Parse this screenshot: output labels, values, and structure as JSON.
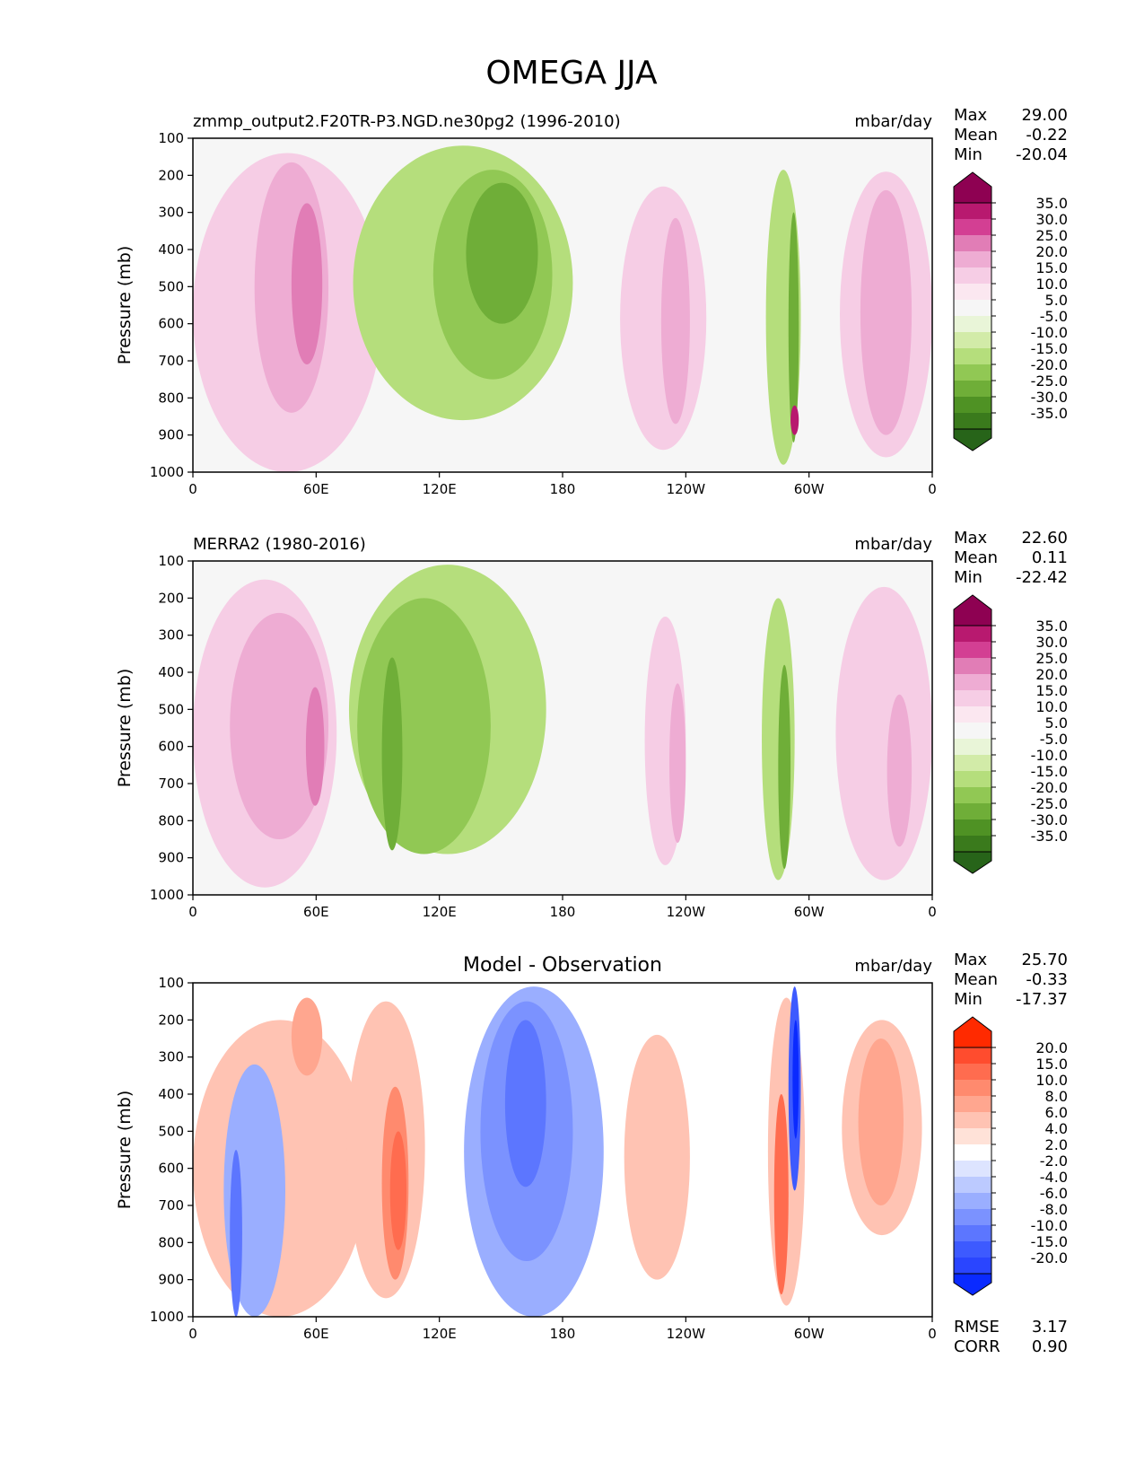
{
  "figure": {
    "title": "OMEGA JJA"
  },
  "chart_data": [
    {
      "type": "heatmap",
      "title": "",
      "left_title": "zmmp_output2.F20TR-P3.NGD.ne30pg2 (1996-2010)",
      "units": "mbar/day",
      "ylabel": "Pressure (mb)",
      "xlabel": "",
      "xticks": [
        "0",
        "60E",
        "120E",
        "180",
        "120W",
        "60W",
        "0"
      ],
      "yticks": [
        "100",
        "200",
        "300",
        "400",
        "500",
        "600",
        "700",
        "800",
        "900",
        "1000"
      ],
      "xlim": [
        0,
        360
      ],
      "ylim": [
        1000,
        100
      ],
      "stats": [
        {
          "label": "Max",
          "value": "29.00"
        },
        {
          "label": "Mean",
          "value": "-0.22"
        },
        {
          "label": "Min",
          "value": "-20.04"
        }
      ],
      "colorbar": {
        "labels": [
          "35.0",
          "30.0",
          "25.0",
          "20.0",
          "15.0",
          "10.0",
          "5.0",
          "-5.0",
          "-10.0",
          "-15.0",
          "-20.0",
          "-25.0",
          "-30.0",
          "-35.0"
        ],
        "colors": [
          "#8e0152",
          "#b8196f",
          "#d33f93",
          "#e17db6",
          "#eeacd3",
          "#f6cde5",
          "#fbe7f0",
          "#f6f6f6",
          "#e9f5d8",
          "#d2eba8",
          "#b5de7c",
          "#91c854",
          "#6fae38",
          "#4f9224",
          "#3a7a1c",
          "#276419"
        ]
      },
      "regions": [
        {
          "lon": [
            0,
            92
          ],
          "p": [
            140,
            1000
          ],
          "level": 10
        },
        {
          "lon": [
            30,
            66
          ],
          "p": [
            165,
            840
          ],
          "level": 15
        },
        {
          "lon": [
            48,
            63
          ],
          "p": [
            275,
            710
          ],
          "level": 20
        },
        {
          "lon": [
            78,
            185
          ],
          "p": [
            120,
            860
          ],
          "level": -10
        },
        {
          "lon": [
            117,
            175
          ],
          "p": [
            185,
            750
          ],
          "level": -15
        },
        {
          "lon": [
            133,
            168
          ],
          "p": [
            220,
            600
          ],
          "level": -20
        },
        {
          "lon": [
            208,
            250
          ],
          "p": [
            230,
            940
          ],
          "level": 10
        },
        {
          "lon": [
            228,
            242
          ],
          "p": [
            315,
            870
          ],
          "level": 15
        },
        {
          "lon": [
            279,
            296
          ],
          "p": [
            185,
            980
          ],
          "level": -10
        },
        {
          "lon": [
            290,
            295
          ],
          "p": [
            300,
            920
          ],
          "level": -20
        },
        {
          "lon": [
            291,
            295
          ],
          "p": [
            820,
            900
          ],
          "level": 30
        },
        {
          "lon": [
            315,
            360
          ],
          "p": [
            190,
            960
          ],
          "level": 10
        },
        {
          "lon": [
            325,
            350
          ],
          "p": [
            240,
            900
          ],
          "level": 15
        }
      ]
    },
    {
      "type": "heatmap",
      "title": "",
      "left_title": "MERRA2 (1980-2016)",
      "units": "mbar/day",
      "ylabel": "Pressure (mb)",
      "xlabel": "",
      "xticks": [
        "0",
        "60E",
        "120E",
        "180",
        "120W",
        "60W",
        "0"
      ],
      "yticks": [
        "100",
        "200",
        "300",
        "400",
        "500",
        "600",
        "700",
        "800",
        "900",
        "1000"
      ],
      "xlim": [
        0,
        360
      ],
      "ylim": [
        1000,
        100
      ],
      "stats": [
        {
          "label": "Max",
          "value": "22.60"
        },
        {
          "label": "Mean",
          "value": "0.11"
        },
        {
          "label": "Min",
          "value": "-22.42"
        }
      ],
      "colorbar": {
        "labels": [
          "35.0",
          "30.0",
          "25.0",
          "20.0",
          "15.0",
          "10.0",
          "5.0",
          "-5.0",
          "-10.0",
          "-15.0",
          "-20.0",
          "-25.0",
          "-30.0",
          "-35.0"
        ],
        "colors": [
          "#8e0152",
          "#b8196f",
          "#d33f93",
          "#e17db6",
          "#eeacd3",
          "#f6cde5",
          "#fbe7f0",
          "#f6f6f6",
          "#e9f5d8",
          "#d2eba8",
          "#b5de7c",
          "#91c854",
          "#6fae38",
          "#4f9224",
          "#3a7a1c",
          "#276419"
        ]
      },
      "regions": [
        {
          "lon": [
            0,
            70
          ],
          "p": [
            150,
            980
          ],
          "level": 10
        },
        {
          "lon": [
            18,
            66
          ],
          "p": [
            240,
            850
          ],
          "level": 15
        },
        {
          "lon": [
            55,
            64
          ],
          "p": [
            440,
            760
          ],
          "level": 20
        },
        {
          "lon": [
            76,
            172
          ],
          "p": [
            110,
            890
          ],
          "level": -10
        },
        {
          "lon": [
            80,
            145
          ],
          "p": [
            200,
            890
          ],
          "level": -15
        },
        {
          "lon": [
            92,
            102
          ],
          "p": [
            360,
            880
          ],
          "level": -20
        },
        {
          "lon": [
            220,
            240
          ],
          "p": [
            250,
            920
          ],
          "level": 10
        },
        {
          "lon": [
            232,
            240
          ],
          "p": [
            430,
            860
          ],
          "level": 15
        },
        {
          "lon": [
            277,
            293
          ],
          "p": [
            200,
            960
          ],
          "level": -10
        },
        {
          "lon": [
            285,
            291
          ],
          "p": [
            380,
            930
          ],
          "level": -20
        },
        {
          "lon": [
            313,
            360
          ],
          "p": [
            170,
            960
          ],
          "level": 10
        },
        {
          "lon": [
            338,
            350
          ],
          "p": [
            460,
            870
          ],
          "level": 15
        }
      ]
    },
    {
      "type": "heatmap",
      "title": "Model - Observation",
      "left_title": "",
      "units": "mbar/day",
      "ylabel": "Pressure (mb)",
      "xlabel": "",
      "xticks": [
        "0",
        "60E",
        "120E",
        "180",
        "120W",
        "60W",
        "0"
      ],
      "yticks": [
        "100",
        "200",
        "300",
        "400",
        "500",
        "600",
        "700",
        "800",
        "900",
        "1000"
      ],
      "xlim": [
        0,
        360
      ],
      "ylim": [
        1000,
        100
      ],
      "stats": [
        {
          "label": "Max",
          "value": "25.70"
        },
        {
          "label": "Mean",
          "value": "-0.33"
        },
        {
          "label": "Min",
          "value": "-17.37"
        }
      ],
      "extra_stats": [
        {
          "label": "RMSE",
          "value": "3.17"
        },
        {
          "label": "CORR",
          "value": "0.90"
        }
      ],
      "colorbar": {
        "labels": [
          "20.0",
          "15.0",
          "10.0",
          "8.0",
          "6.0",
          "4.0",
          "2.0",
          "-2.0",
          "-4.0",
          "-6.0",
          "-8.0",
          "-10.0",
          "-15.0",
          "-20.0"
        ],
        "colors": [
          "#ff2a00",
          "#ff4c2e",
          "#ff6c4f",
          "#ff8a6e",
          "#ffa68f",
          "#ffc3b3",
          "#ffe2d8",
          "#ffffff",
          "#dde4ff",
          "#bccaff",
          "#9aaeff",
          "#7b92ff",
          "#5c76ff",
          "#3d5aff",
          "#2a45ff",
          "#0a2aff"
        ]
      },
      "regions": [
        {
          "lon": [
            0,
            85
          ],
          "p": [
            200,
            1000
          ],
          "level": 4
        },
        {
          "lon": [
            48,
            63
          ],
          "p": [
            140,
            350
          ],
          "level": 6
        },
        {
          "lon": [
            15,
            45
          ],
          "p": [
            320,
            1000
          ],
          "level": -4
        },
        {
          "lon": [
            18,
            24
          ],
          "p": [
            550,
            1000
          ],
          "level": -8
        },
        {
          "lon": [
            75,
            113
          ],
          "p": [
            150,
            950
          ],
          "level": 4
        },
        {
          "lon": [
            92,
            105
          ],
          "p": [
            380,
            900
          ],
          "level": 8
        },
        {
          "lon": [
            96,
            104
          ],
          "p": [
            500,
            820
          ],
          "level": 10
        },
        {
          "lon": [
            132,
            200
          ],
          "p": [
            110,
            1000
          ],
          "level": -4
        },
        {
          "lon": [
            140,
            185
          ],
          "p": [
            150,
            850
          ],
          "level": -6
        },
        {
          "lon": [
            152,
            172
          ],
          "p": [
            200,
            650
          ],
          "level": -8
        },
        {
          "lon": [
            210,
            242
          ],
          "p": [
            240,
            900
          ],
          "level": 4
        },
        {
          "lon": [
            280,
            298
          ],
          "p": [
            140,
            970
          ],
          "level": 4
        },
        {
          "lon": [
            283,
            290
          ],
          "p": [
            400,
            940
          ],
          "level": 10
        },
        {
          "lon": [
            290,
            296
          ],
          "p": [
            110,
            660
          ],
          "level": -10
        },
        {
          "lon": [
            292,
            295
          ],
          "p": [
            200,
            520
          ],
          "level": -20
        },
        {
          "lon": [
            316,
            355
          ],
          "p": [
            200,
            780
          ],
          "level": 4
        },
        {
          "lon": [
            324,
            346
          ],
          "p": [
            250,
            700
          ],
          "level": 6
        }
      ]
    }
  ]
}
